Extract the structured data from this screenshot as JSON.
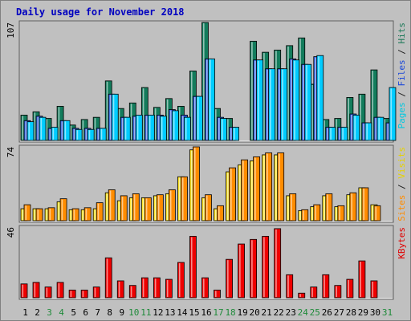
{
  "chart_data": {
    "type": "bar",
    "title": "Daily usage for November 2018",
    "categories": [
      "1",
      "2",
      "3",
      "4",
      "5",
      "6",
      "7",
      "8",
      "9",
      "10",
      "11",
      "12",
      "13",
      "14",
      "15",
      "16",
      "17",
      "18",
      "19",
      "20",
      "21",
      "22",
      "23",
      "24",
      "25",
      "26",
      "27",
      "28",
      "29",
      "30",
      "31"
    ],
    "weekend_days": [
      "3",
      "4",
      "10",
      "11",
      "17",
      "18",
      "24",
      "25",
      "31"
    ],
    "panels": [
      {
        "id": "hits-files-pages",
        "ymax_label": "107",
        "ymax": 107,
        "right_label_parts": [
          {
            "text": "Pages",
            "color": "#00c8e0"
          },
          {
            "text": " / ",
            "color": "#202020"
          },
          {
            "text": "Files",
            "color": "#1e4ad8"
          },
          {
            "text": " / ",
            "color": "#202020"
          },
          {
            "text": "Hits",
            "color": "#1f7a5a"
          }
        ],
        "series": [
          {
            "name": "Hits",
            "color": "#137c5c",
            "values": [
              23,
              26,
              20,
              31,
              14,
              19,
              21,
              54,
              29,
              34,
              48,
              30,
              38,
              31,
              63,
              107,
              29,
              20,
              0,
              90,
              80,
              82,
              86,
              93,
              51,
              19,
              20,
              39,
              42,
              64,
              20
            ]
          },
          {
            "name": "Files",
            "color": "#2a5bdc",
            "values": [
              18,
              22,
              11,
              18,
              11,
              11,
              11,
              42,
              21,
              22,
              23,
              23,
              28,
              23,
              40,
              74,
              21,
              12,
              0,
              73,
              65,
              65,
              74,
              69,
              76,
              12,
              12,
              24,
              16,
              21,
              16
            ]
          },
          {
            "name": "Pages",
            "color": "#00ccff",
            "values": [
              17,
              21,
              12,
              18,
              10,
              10,
              11,
              42,
              21,
              23,
              23,
              22,
              27,
              21,
              40,
              74,
              20,
              12,
              0,
              73,
              65,
              65,
              73,
              69,
              77,
              12,
              12,
              23,
              16,
              21,
              48
            ]
          }
        ]
      },
      {
        "id": "visits-sites",
        "ymax_label": "74",
        "ymax": 74,
        "right_label_parts": [
          {
            "text": "Sites",
            "color": "#ff8c00"
          },
          {
            "text": " / ",
            "color": "#202020"
          },
          {
            "text": "Visits",
            "color": "#e6d200"
          }
        ],
        "series": [
          {
            "name": "Visits",
            "color": "#ffe41a",
            "values": [
              12,
              12,
              12,
              19,
              11,
              11,
              12,
              28,
              20,
              23,
              23,
              25,
              27,
              44,
              71,
              23,
              12,
              49,
              56,
              60,
              66,
              66,
              25,
              10,
              14,
              25,
              14,
              26,
              33,
              16,
              0
            ]
          },
          {
            "name": "Sites",
            "color": "#ff8c00",
            "values": [
              16,
              12,
              13,
              22,
              12,
              13,
              18,
              31,
              25,
              27,
              23,
              26,
              31,
              44,
              74,
              26,
              15,
              53,
              61,
              64,
              68,
              68,
              27,
              11,
              16,
              27,
              15,
              28,
              33,
              15,
              0
            ]
          }
        ]
      },
      {
        "id": "kbytes",
        "ymax_label": "46",
        "ymax": 46,
        "right_label_parts": [
          {
            "text": "KBytes",
            "color": "#e00000"
          }
        ],
        "series": [
          {
            "name": "KBytes",
            "color": "#ee0000",
            "values": [
              9,
              10,
              7,
              10,
              5,
              5,
              7,
              26,
              11,
              8,
              13,
              13,
              12,
              23,
              40,
              13,
              5,
              25,
              35,
              38,
              40,
              45,
              15,
              3,
              7,
              15,
              8,
              12,
              24,
              11,
              0
            ]
          }
        ]
      }
    ]
  }
}
